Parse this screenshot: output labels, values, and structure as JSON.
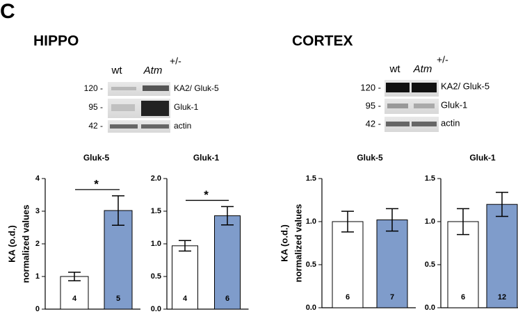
{
  "panel_label": "C",
  "sections": [
    {
      "title": "HIPPO",
      "genotypes": [
        "wt",
        "Atm"
      ],
      "superscript": "+/-",
      "blot_rows": [
        {
          "mw": "120 -",
          "label": "KA2/ Gluk-5"
        },
        {
          "mw": "95 -",
          "label": "Gluk-1"
        },
        {
          "mw": "42 -",
          "label": "actin"
        }
      ]
    },
    {
      "title": "CORTEX",
      "genotypes": [
        "wt",
        "Atm"
      ],
      "superscript": "+/-",
      "blot_rows": [
        {
          "mw": "120 -",
          "label": "KA2/ Gluk-5"
        },
        {
          "mw": "95 -",
          "label": "Gluk-1"
        },
        {
          "mw": "42 -",
          "label": "actin"
        }
      ]
    }
  ],
  "chart_data": [
    {
      "type": "bar",
      "title": "Gluk-5",
      "ylabel": [
        "KA (o.d.)",
        "normalized values"
      ],
      "categories": [
        null,
        null
      ],
      "values": [
        1.0,
        3.02
      ],
      "errors": [
        0.13,
        0.45
      ],
      "n_labels": [
        "4",
        "5"
      ],
      "colors": [
        "#ffffff",
        "#7f9ccb"
      ],
      "significance": "*",
      "ylim": [
        0,
        4
      ],
      "yticks": [
        0,
        1,
        2,
        3,
        4
      ]
    },
    {
      "type": "bar",
      "title": "Gluk-1",
      "categories": [
        null,
        null
      ],
      "values": [
        0.97,
        1.43
      ],
      "errors": [
        0.08,
        0.14
      ],
      "n_labels": [
        "4",
        "6"
      ],
      "colors": [
        "#ffffff",
        "#7f9ccb"
      ],
      "significance": "*",
      "ylim": [
        0,
        2
      ],
      "yticks": [
        {
          "value": 0,
          "label": "0.0"
        },
        0.5,
        {
          "value": 1,
          "label": "1.0"
        },
        1.5,
        {
          "value": 2,
          "label": "2.0"
        }
      ]
    },
    {
      "type": "bar",
      "title": "Gluk-5",
      "ylabel": [
        "KA (o.d.)",
        "normalized values"
      ],
      "categories": [
        null,
        null
      ],
      "values": [
        1.0,
        1.02
      ],
      "errors": [
        0.12,
        0.13
      ],
      "n_labels": [
        "6",
        "7"
      ],
      "colors": [
        "#ffffff",
        "#7f9ccb"
      ],
      "ylim": [
        0,
        1.5
      ],
      "yticks": [
        {
          "value": 0,
          "label": "0.0"
        },
        0.5,
        {
          "value": 1,
          "label": "1.0"
        },
        1.5
      ]
    },
    {
      "type": "bar",
      "title": "Gluk-1",
      "categories": [
        null,
        null
      ],
      "values": [
        1.0,
        1.2
      ],
      "errors": [
        0.15,
        0.14
      ],
      "n_labels": [
        "6",
        "12"
      ],
      "colors": [
        "#ffffff",
        "#7f9ccb"
      ],
      "ylim": [
        0,
        1.5
      ],
      "yticks": [
        {
          "value": 0,
          "label": "0.0"
        },
        0.5,
        {
          "value": 1,
          "label": "1.0"
        },
        1.5
      ]
    }
  ]
}
